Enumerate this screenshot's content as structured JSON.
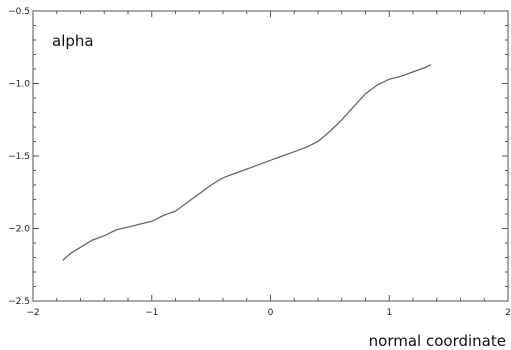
{
  "chart_data": {
    "type": "line",
    "title": "",
    "xlabel": "normal coordinate",
    "ylabel": "",
    "annotation": "alpha",
    "xlim": [
      -2,
      2
    ],
    "ylim": [
      -2.5,
      -0.5
    ],
    "xticks": [
      -2,
      -1,
      0,
      1,
      2
    ],
    "xtick_labels": [
      "−2",
      "−1",
      "0",
      "1",
      "2"
    ],
    "yticks": [
      -2.5,
      -2.0,
      -1.5,
      -1.0,
      -0.5
    ],
    "ytick_labels": [
      "−2.5",
      "−2.0",
      "−1.5",
      "−1.0",
      "−0.5"
    ],
    "grid": false,
    "line_color": "#666666",
    "series": [
      {
        "x": [
          -1.75,
          -1.68,
          -1.6,
          -1.5,
          -1.4,
          -1.3,
          -1.2,
          -1.1,
          -1.0,
          -0.9,
          -0.8,
          -0.7,
          -0.6,
          -0.5,
          -0.4,
          -0.3,
          -0.2,
          -0.1,
          0.0,
          0.1,
          0.2,
          0.3,
          0.4,
          0.5,
          0.6,
          0.7,
          0.8,
          0.9,
          1.0,
          1.1,
          1.2,
          1.3,
          1.35
        ],
        "y": [
          -2.22,
          -2.17,
          -2.13,
          -2.08,
          -2.05,
          -2.01,
          -1.99,
          -1.97,
          -1.95,
          -1.91,
          -1.88,
          -1.82,
          -1.76,
          -1.7,
          -1.65,
          -1.62,
          -1.59,
          -1.56,
          -1.53,
          -1.5,
          -1.47,
          -1.44,
          -1.4,
          -1.33,
          -1.25,
          -1.16,
          -1.07,
          -1.01,
          -0.97,
          -0.95,
          -0.92,
          -0.89,
          -0.87
        ]
      }
    ]
  }
}
